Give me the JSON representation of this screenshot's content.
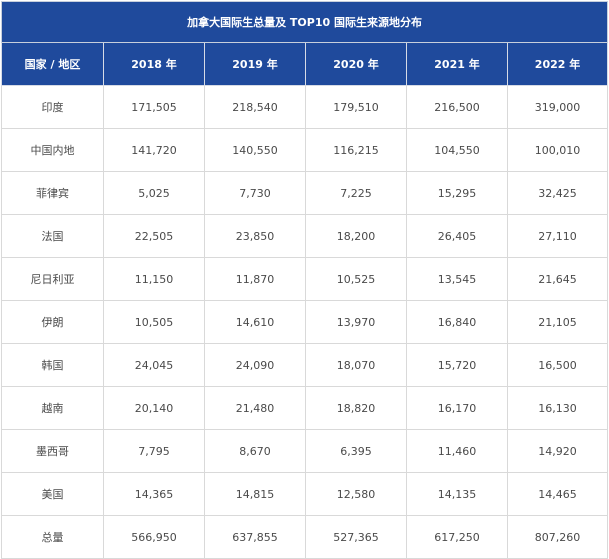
{
  "table": {
    "title": "加拿大国际生总量及 TOP10 国际生来源地分布",
    "headers": [
      "国家 / 地区",
      "2018 年",
      "2019 年",
      "2020 年",
      "2021 年",
      "2022 年"
    ],
    "rows": [
      [
        "印度",
        "171,505",
        "218,540",
        "179,510",
        "216,500",
        "319,000"
      ],
      [
        "中国内地",
        "141,720",
        "140,550",
        "116,215",
        "104,550",
        "100,010"
      ],
      [
        "菲律宾",
        "5,025",
        "7,730",
        "7,225",
        "15,295",
        "32,425"
      ],
      [
        "法国",
        "22,505",
        "23,850",
        "18,200",
        "26,405",
        "27,110"
      ],
      [
        "尼日利亚",
        "11,150",
        "11,870",
        "10,525",
        "13,545",
        "21,645"
      ],
      [
        "伊朗",
        "10,505",
        "14,610",
        "13,970",
        "16,840",
        "21,105"
      ],
      [
        "韩国",
        "24,045",
        "24,090",
        "18,070",
        "15,720",
        "16,500"
      ],
      [
        "越南",
        "20,140",
        "21,480",
        "18,820",
        "16,170",
        "16,130"
      ],
      [
        "墨西哥",
        "7,795",
        "8,670",
        "6,395",
        "11,460",
        "14,920"
      ],
      [
        "美国",
        "14,365",
        "14,815",
        "12,580",
        "14,135",
        "14,465"
      ],
      [
        "总量",
        "566,950",
        "637,855",
        "527,365",
        "617,250",
        "807,260"
      ]
    ]
  },
  "colors": {
    "header_bg": "#1f4a9c",
    "header_text": "#ffffff",
    "body_text": "#4a4a4a",
    "grid": "#d9d9d9"
  }
}
